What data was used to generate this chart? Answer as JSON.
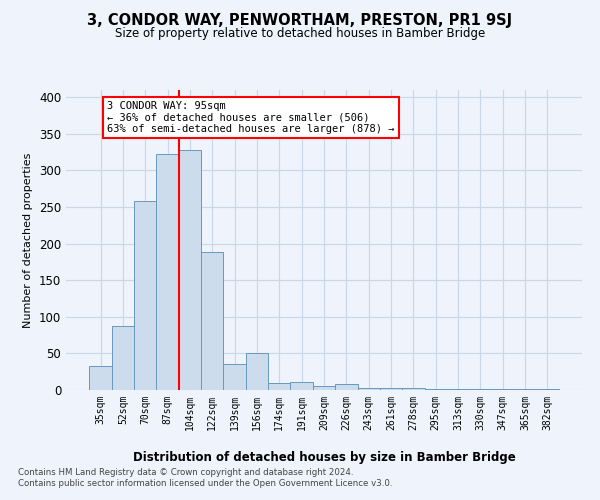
{
  "title": "3, CONDOR WAY, PENWORTHAM, PRESTON, PR1 9SJ",
  "subtitle": "Size of property relative to detached houses in Bamber Bridge",
  "xlabel": "Distribution of detached houses by size in Bamber Bridge",
  "ylabel": "Number of detached properties",
  "bar_labels": [
    "35sqm",
    "52sqm",
    "70sqm",
    "87sqm",
    "104sqm",
    "122sqm",
    "139sqm",
    "156sqm",
    "174sqm",
    "191sqm",
    "209sqm",
    "226sqm",
    "243sqm",
    "261sqm",
    "278sqm",
    "295sqm",
    "313sqm",
    "330sqm",
    "347sqm",
    "365sqm",
    "382sqm"
  ],
  "bar_heights": [
    33,
    88,
    258,
    323,
    328,
    188,
    35,
    50,
    10,
    11,
    5,
    8,
    3,
    3,
    3,
    2,
    1,
    1,
    1,
    1,
    2
  ],
  "bar_color": "#ccdcec",
  "bar_edge_color": "#6699bb",
  "grid_color": "#c8d8e8",
  "background_color": "#eef3fc",
  "vline_x_index": 3,
  "vline_color": "red",
  "annotation_text": "3 CONDOR WAY: 95sqm\n← 36% of detached houses are smaller (506)\n63% of semi-detached houses are larger (878) →",
  "annotation_box_color": "white",
  "annotation_box_edge": "red",
  "ylim": [
    0,
    410
  ],
  "yticks": [
    0,
    50,
    100,
    150,
    200,
    250,
    300,
    350,
    400
  ],
  "footer": "Contains HM Land Registry data © Crown copyright and database right 2024.\nContains public sector information licensed under the Open Government Licence v3.0."
}
